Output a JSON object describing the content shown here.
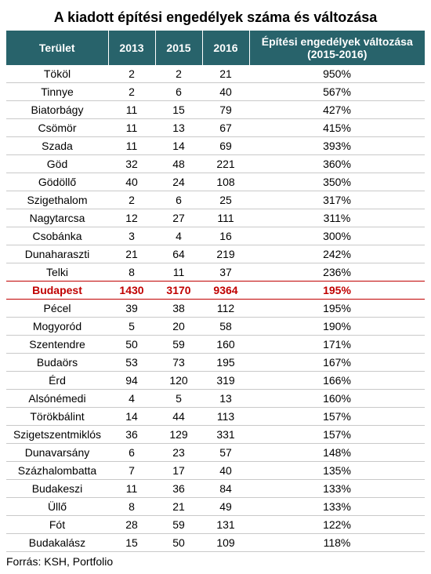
{
  "title": "A kiadott építési engedélyek száma és változása",
  "columns": [
    "Terület",
    "2013",
    "2015",
    "2016",
    "Építési engedélyek változása (2015-2016)"
  ],
  "header_bg": "#28636b",
  "header_fg": "#ffffff",
  "row_border": "#c9c9c9",
  "highlight_color": "#c00000",
  "highlight_row_index": 12,
  "rows": [
    [
      "Tököl",
      "2",
      "2",
      "21",
      "950%"
    ],
    [
      "Tinnye",
      "2",
      "6",
      "40",
      "567%"
    ],
    [
      "Biatorbágy",
      "11",
      "15",
      "79",
      "427%"
    ],
    [
      "Csömör",
      "11",
      "13",
      "67",
      "415%"
    ],
    [
      "Szada",
      "11",
      "14",
      "69",
      "393%"
    ],
    [
      "Göd",
      "32",
      "48",
      "221",
      "360%"
    ],
    [
      "Gödöllő",
      "40",
      "24",
      "108",
      "350%"
    ],
    [
      "Szigethalom",
      "2",
      "6",
      "25",
      "317%"
    ],
    [
      "Nagytarcsa",
      "12",
      "27",
      "111",
      "311%"
    ],
    [
      "Csobánka",
      "3",
      "4",
      "16",
      "300%"
    ],
    [
      "Dunaharaszti",
      "21",
      "64",
      "219",
      "242%"
    ],
    [
      "Telki",
      "8",
      "11",
      "37",
      "236%"
    ],
    [
      "Budapest",
      "1430",
      "3170",
      "9364",
      "195%"
    ],
    [
      "Pécel",
      "39",
      "38",
      "112",
      "195%"
    ],
    [
      "Mogyoród",
      "5",
      "20",
      "58",
      "190%"
    ],
    [
      "Szentendre",
      "50",
      "59",
      "160",
      "171%"
    ],
    [
      "Budaörs",
      "53",
      "73",
      "195",
      "167%"
    ],
    [
      "Érd",
      "94",
      "120",
      "319",
      "166%"
    ],
    [
      "Alsónémedi",
      "4",
      "5",
      "13",
      "160%"
    ],
    [
      "Törökbálint",
      "14",
      "44",
      "113",
      "157%"
    ],
    [
      "Szigetszentmiklós",
      "36",
      "129",
      "331",
      "157%"
    ],
    [
      "Dunavarsány",
      "6",
      "23",
      "57",
      "148%"
    ],
    [
      "Százhalombatta",
      "7",
      "17",
      "40",
      "135%"
    ],
    [
      "Budakeszi",
      "11",
      "36",
      "84",
      "133%"
    ],
    [
      "Üllő",
      "8",
      "21",
      "49",
      "133%"
    ],
    [
      "Fót",
      "28",
      "59",
      "131",
      "122%"
    ],
    [
      "Budakalász",
      "15",
      "50",
      "109",
      "118%"
    ]
  ],
  "source": "Forrás: KSH, Portfolio"
}
